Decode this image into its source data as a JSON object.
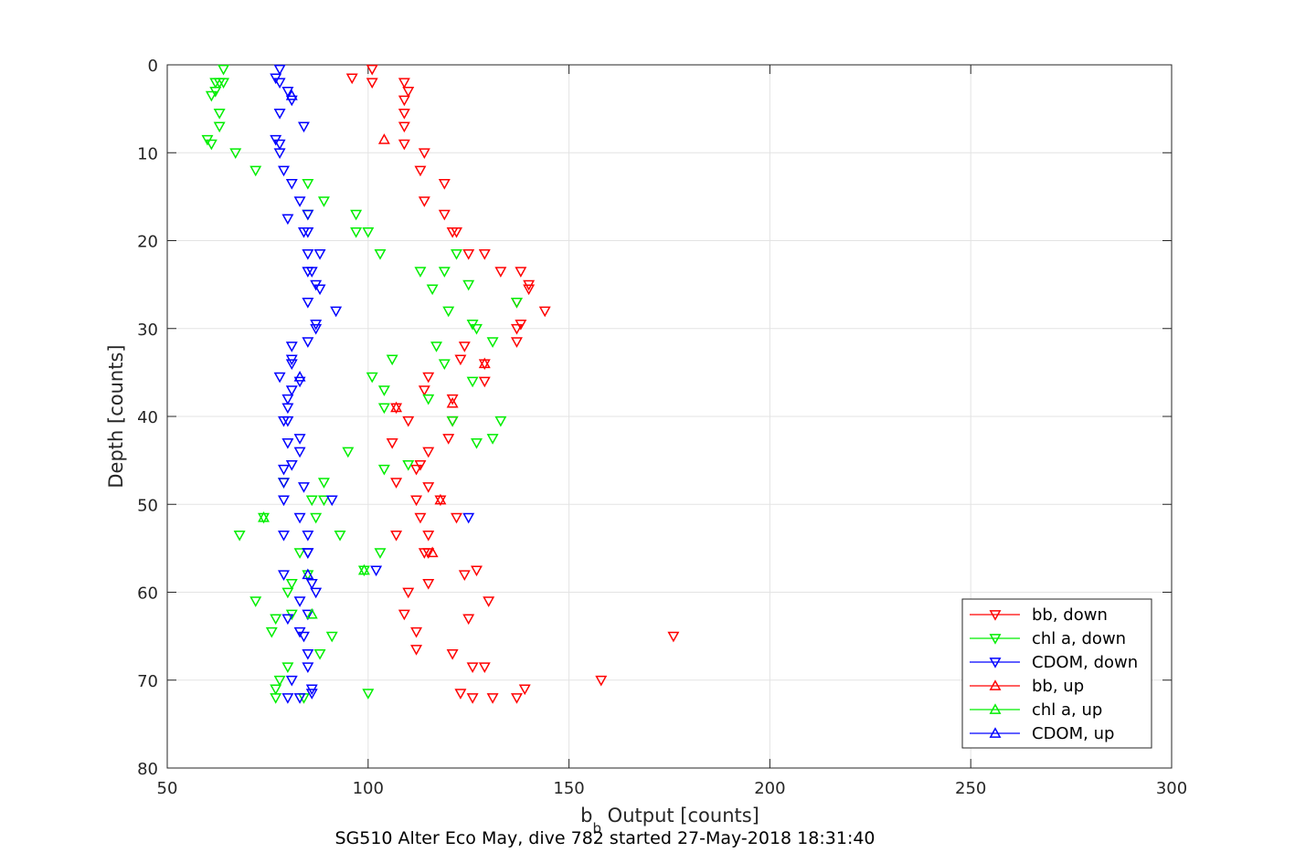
{
  "chart_data": {
    "type": "scatter",
    "xlabel_main": "b",
    "xlabel_sub": "b",
    "xlabel_rest": " Output [counts]",
    "ylabel": "Depth [counts]",
    "title": "SG510 Alter Eco May, dive 782 started 27-May-2018 18:31:40",
    "xlim": [
      50,
      300
    ],
    "ylim": [
      0,
      80
    ],
    "y_reversed": true,
    "grid": true,
    "xticks": [
      50,
      100,
      150,
      200,
      250,
      300
    ],
    "yticks": [
      0,
      10,
      20,
      30,
      40,
      50,
      60,
      70,
      80
    ],
    "legend_position": "bottom-right",
    "series": [
      {
        "name": "bb, down",
        "color": "#ff0000",
        "marker": "down",
        "points": [
          [
            101,
            0.5
          ],
          [
            96,
            1.5
          ],
          [
            109,
            2
          ],
          [
            101,
            2
          ],
          [
            110,
            3
          ],
          [
            109,
            4
          ],
          [
            109,
            5.5
          ],
          [
            109,
            7
          ],
          [
            109,
            9
          ],
          [
            114,
            10
          ],
          [
            113,
            12
          ],
          [
            119,
            13.5
          ],
          [
            114,
            15.5
          ],
          [
            119,
            17
          ],
          [
            122,
            19
          ],
          [
            121,
            19
          ],
          [
            125,
            21.5
          ],
          [
            129,
            21.5
          ],
          [
            133,
            23.5
          ],
          [
            138,
            23.5
          ],
          [
            140,
            25
          ],
          [
            140,
            25.5
          ],
          [
            137,
            27
          ],
          [
            144,
            28
          ],
          [
            138,
            29.5
          ],
          [
            137,
            30
          ],
          [
            124,
            32
          ],
          [
            137,
            31.5
          ],
          [
            123,
            33.5
          ],
          [
            129,
            34
          ],
          [
            115,
            35.5
          ],
          [
            129,
            36
          ],
          [
            114,
            37
          ],
          [
            121,
            38
          ],
          [
            107,
            39
          ],
          [
            110,
            40.5
          ],
          [
            121,
            40.5
          ],
          [
            120,
            42.5
          ],
          [
            106,
            43
          ],
          [
            115,
            44
          ],
          [
            113,
            45.5
          ],
          [
            112,
            46
          ],
          [
            107,
            47.5
          ],
          [
            115,
            48
          ],
          [
            112,
            49.5
          ],
          [
            118,
            49.5
          ],
          [
            113,
            51.5
          ],
          [
            122,
            51.5
          ],
          [
            115,
            53.5
          ],
          [
            107,
            53.5
          ],
          [
            115,
            55.5
          ],
          [
            114,
            55.5
          ],
          [
            127,
            57.5
          ],
          [
            124,
            58
          ],
          [
            115,
            59
          ],
          [
            110,
            60
          ],
          [
            130,
            61
          ],
          [
            109,
            62.5
          ],
          [
            125,
            63
          ],
          [
            112,
            64.5
          ],
          [
            176,
            65
          ],
          [
            112,
            66.5
          ],
          [
            121,
            67
          ],
          [
            126,
            68.5
          ],
          [
            129,
            68.5
          ],
          [
            158,
            70
          ],
          [
            139,
            71
          ],
          [
            123,
            71.5
          ],
          [
            131,
            72
          ],
          [
            137,
            72
          ],
          [
            126,
            72
          ]
        ]
      },
      {
        "name": "chl a, down",
        "color": "#00ee00",
        "marker": "down",
        "points": [
          [
            64,
            0.5
          ],
          [
            63,
            2
          ],
          [
            62,
            2
          ],
          [
            64,
            2
          ],
          [
            62,
            3
          ],
          [
            61,
            3.5
          ],
          [
            63,
            5.5
          ],
          [
            63,
            7
          ],
          [
            60,
            8.5
          ],
          [
            61,
            9
          ],
          [
            67,
            10
          ],
          [
            72,
            12
          ],
          [
            85,
            13.5
          ],
          [
            89,
            15.5
          ],
          [
            85,
            17
          ],
          [
            97,
            17
          ],
          [
            97,
            19
          ],
          [
            100,
            19
          ],
          [
            103,
            21.5
          ],
          [
            122,
            21.5
          ],
          [
            113,
            23.5
          ],
          [
            119,
            23.5
          ],
          [
            116,
            25.5
          ],
          [
            125,
            25
          ],
          [
            137,
            27
          ],
          [
            120,
            28
          ],
          [
            126,
            29.5
          ],
          [
            127,
            30
          ],
          [
            117,
            32
          ],
          [
            131,
            31.5
          ],
          [
            106,
            33.5
          ],
          [
            119,
            34
          ],
          [
            101,
            35.5
          ],
          [
            126,
            36
          ],
          [
            104,
            37
          ],
          [
            115,
            38
          ],
          [
            104,
            39
          ],
          [
            121,
            40.5
          ],
          [
            133,
            40.5
          ],
          [
            131,
            42.5
          ],
          [
            127,
            43
          ],
          [
            95,
            44
          ],
          [
            104,
            46
          ],
          [
            110,
            45.5
          ],
          [
            79,
            47.5
          ],
          [
            89,
            47.5
          ],
          [
            86,
            49.5
          ],
          [
            89,
            49.5
          ],
          [
            74,
            51.5
          ],
          [
            87,
            51.5
          ],
          [
            93,
            53.5
          ],
          [
            68,
            53.5
          ],
          [
            83,
            55.5
          ],
          [
            103,
            55.5
          ],
          [
            99,
            57.5
          ],
          [
            85,
            58
          ],
          [
            81,
            59
          ],
          [
            80,
            60
          ],
          [
            72,
            61
          ],
          [
            81,
            62.5
          ],
          [
            77,
            63
          ],
          [
            76,
            64.5
          ],
          [
            91,
            65
          ],
          [
            88,
            67
          ],
          [
            80,
            68.5
          ],
          [
            78,
            70
          ],
          [
            77,
            71
          ],
          [
            100,
            71.5
          ],
          [
            84,
            72
          ],
          [
            77,
            72
          ]
        ]
      },
      {
        "name": "CDOM, down",
        "color": "#0000ff",
        "marker": "down",
        "points": [
          [
            78,
            0.5
          ],
          [
            77,
            1.5
          ],
          [
            78,
            2
          ],
          [
            80,
            3
          ],
          [
            81,
            4
          ],
          [
            78,
            5.5
          ],
          [
            84,
            7
          ],
          [
            77,
            8.5
          ],
          [
            78,
            9
          ],
          [
            78,
            10
          ],
          [
            79,
            12
          ],
          [
            81,
            13.5
          ],
          [
            83,
            15.5
          ],
          [
            85,
            17
          ],
          [
            80,
            17.5
          ],
          [
            85,
            19
          ],
          [
            84,
            19
          ],
          [
            85,
            21.5
          ],
          [
            88,
            21.5
          ],
          [
            85,
            23.5
          ],
          [
            86,
            23.5
          ],
          [
            87,
            25
          ],
          [
            88,
            25.5
          ],
          [
            85,
            27
          ],
          [
            92,
            28
          ],
          [
            87,
            29.5
          ],
          [
            87,
            30
          ],
          [
            81,
            32
          ],
          [
            85,
            31.5
          ],
          [
            81,
            33.5
          ],
          [
            81,
            34
          ],
          [
            78,
            35.5
          ],
          [
            83,
            36
          ],
          [
            81,
            37
          ],
          [
            80,
            38
          ],
          [
            80,
            39
          ],
          [
            79,
            40.5
          ],
          [
            80,
            40.5
          ],
          [
            83,
            42.5
          ],
          [
            80,
            43
          ],
          [
            83,
            44
          ],
          [
            81,
            45.5
          ],
          [
            79,
            46
          ],
          [
            79,
            47.5
          ],
          [
            84,
            48
          ],
          [
            79,
            49.5
          ],
          [
            91,
            49.5
          ],
          [
            83,
            51.5
          ],
          [
            125,
            51.5
          ],
          [
            85,
            53.5
          ],
          [
            79,
            53.5
          ],
          [
            85,
            55.5
          ],
          [
            85,
            55.5
          ],
          [
            102,
            57.5
          ],
          [
            79,
            58
          ],
          [
            86,
            59
          ],
          [
            87,
            60
          ],
          [
            83,
            61
          ],
          [
            85,
            62.5
          ],
          [
            80,
            63
          ],
          [
            83,
            64.5
          ],
          [
            84,
            65
          ],
          [
            85,
            67
          ],
          [
            85,
            68.5
          ],
          [
            81,
            70
          ],
          [
            86,
            71
          ],
          [
            86,
            71.5
          ],
          [
            83,
            72
          ],
          [
            80,
            72
          ]
        ]
      },
      {
        "name": "bb, up",
        "color": "#ff0000",
        "marker": "up",
        "points": [
          [
            107,
            39
          ],
          [
            104,
            8.5
          ],
          [
            121,
            38.5
          ],
          [
            116,
            55.5
          ],
          [
            118,
            49.5
          ],
          [
            129,
            34
          ]
        ]
      },
      {
        "name": "chl a, up",
        "color": "#00ee00",
        "marker": "up",
        "points": [
          [
            99,
            57.5
          ],
          [
            86,
            62.5
          ],
          [
            74,
            51.5
          ]
        ]
      },
      {
        "name": "CDOM, up",
        "color": "#0000ff",
        "marker": "up",
        "points": [
          [
            81,
            3.5
          ],
          [
            85,
            58
          ],
          [
            83,
            35.5
          ]
        ]
      }
    ]
  }
}
